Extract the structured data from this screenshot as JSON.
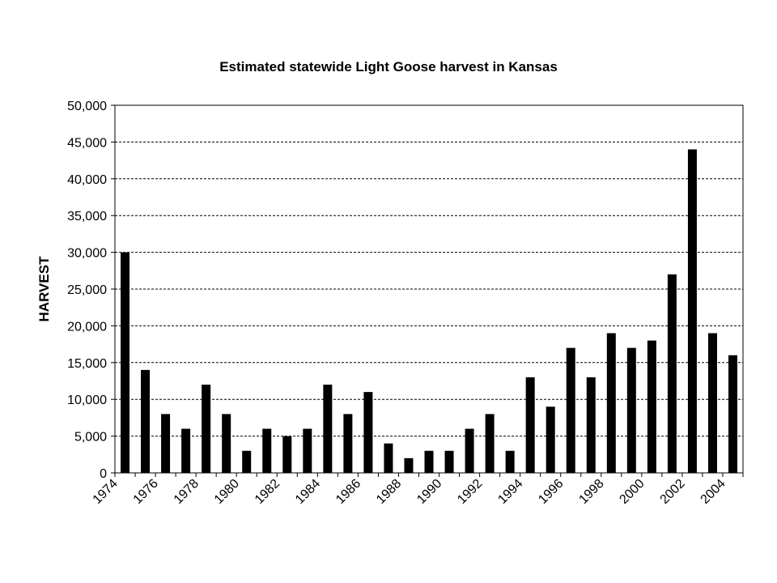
{
  "chart_data": {
    "type": "bar",
    "title": "Estimated statewide Light Goose harvest in Kansas",
    "xlabel": "",
    "ylabel": "HARVEST",
    "ylim": [
      0,
      50000
    ],
    "yticks": [
      "0",
      "5,000",
      "10,000",
      "15,000",
      "20,000",
      "25,000",
      "30,000",
      "35,000",
      "40,000",
      "45,000",
      "50,000"
    ],
    "xtick_labels": [
      "1974",
      "1976",
      "1978",
      "1980",
      "1982",
      "1984",
      "1986",
      "1988",
      "1990",
      "1992",
      "1994",
      "1996",
      "1998",
      "2000",
      "2002",
      "2004"
    ],
    "categories": [
      "1974",
      "1975",
      "1976",
      "1977",
      "1978",
      "1979",
      "1980",
      "1981",
      "1982",
      "1983",
      "1984",
      "1985",
      "1986",
      "1987",
      "1988",
      "1989",
      "1990",
      "1991",
      "1992",
      "1993",
      "1994",
      "1995",
      "1996",
      "1997",
      "1998",
      "1999",
      "2000",
      "2001",
      "2002",
      "2003",
      "2004"
    ],
    "values": [
      30000,
      14000,
      8000,
      6000,
      12000,
      8000,
      3000,
      6000,
      5000,
      6000,
      12000,
      8000,
      11000,
      4000,
      2000,
      3000,
      3000,
      6000,
      8000,
      3000,
      13000,
      9000,
      17000,
      13000,
      19000,
      17000,
      18000,
      27000,
      44000,
      19000,
      16000
    ],
    "grid": true,
    "bar_color": "#000000"
  }
}
